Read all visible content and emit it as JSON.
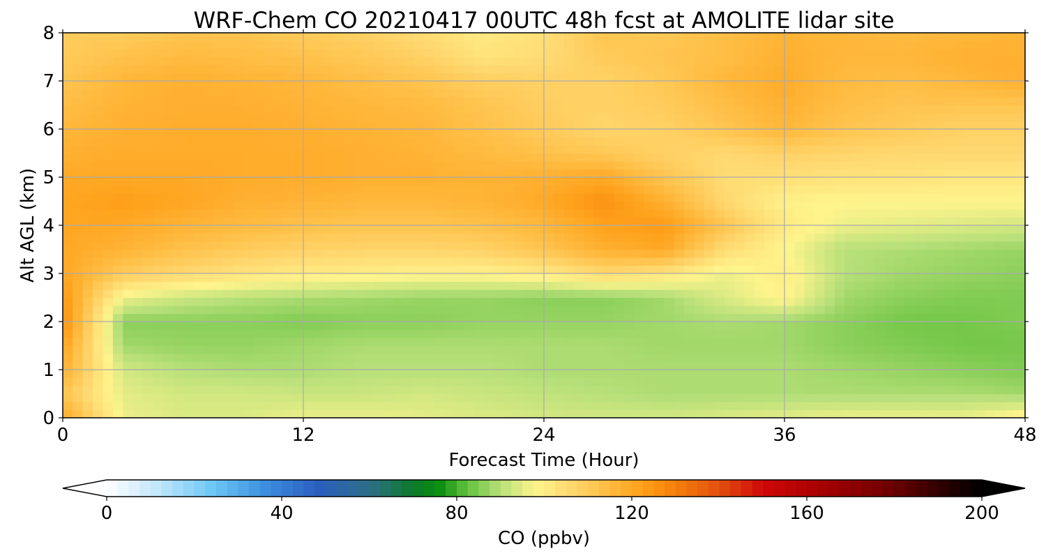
{
  "chart_data": {
    "type": "heatmap",
    "title": "WRF-Chem CO  20210417 00UTC 48h fcst at AMOLITE lidar site",
    "xlabel": "Forecast Time (Hour)",
    "ylabel": "Alt AGL (km)",
    "xlim": [
      0,
      48
    ],
    "ylim": [
      0,
      8
    ],
    "x_ticks": [
      0,
      12,
      24,
      36,
      48
    ],
    "y_ticks": [
      0,
      1,
      2,
      3,
      4,
      5,
      6,
      7,
      8
    ],
    "grid": true,
    "x": [
      0,
      3,
      6,
      9,
      12,
      15,
      18,
      21,
      24,
      27,
      30,
      33,
      36,
      39,
      42,
      45,
      48
    ],
    "y": [
      0,
      0.5,
      1,
      1.5,
      2,
      2.5,
      3,
      3.5,
      4,
      4.5,
      5,
      5.5,
      6,
      6.5,
      7,
      7.5,
      8
    ],
    "z": [
      [
        120,
        96,
        94,
        94,
        96,
        96,
        95,
        94,
        93,
        93,
        93,
        94,
        95,
        96,
        96,
        96,
        100
      ],
      [
        112,
        95,
        93,
        93,
        92,
        92,
        93,
        92,
        91,
        90,
        89,
        89,
        89,
        89,
        89,
        89,
        88
      ],
      [
        118,
        93,
        90,
        89,
        89,
        90,
        90,
        90,
        89,
        89,
        89,
        89,
        89,
        88,
        87,
        86,
        85
      ],
      [
        122,
        88,
        87,
        87,
        88,
        89,
        89,
        89,
        89,
        89,
        88,
        88,
        88,
        86,
        85,
        84,
        84
      ],
      [
        127,
        86,
        86,
        86,
        85,
        86,
        86,
        87,
        87,
        87,
        88,
        89,
        88,
        86,
        84,
        84,
        85
      ],
      [
        125,
        96,
        92,
        90,
        89,
        88,
        87,
        87,
        86,
        86,
        88,
        94,
        99,
        88,
        86,
        85,
        85
      ],
      [
        121,
        110,
        106,
        103,
        101,
        100,
        99,
        99,
        101,
        106,
        103,
        96,
        100,
        90,
        88,
        87,
        86
      ],
      [
        120,
        117,
        113,
        110,
        108,
        107,
        107,
        108,
        112,
        118,
        120,
        105,
        98,
        90,
        89,
        88,
        87
      ],
      [
        121,
        120,
        117,
        115,
        113,
        112,
        112,
        113,
        116,
        122,
        124,
        112,
        101,
        96,
        95,
        94,
        93
      ],
      [
        121,
        123,
        121,
        118,
        117,
        116,
        116,
        117,
        120,
        126,
        118,
        106,
        99,
        98,
        98,
        98,
        98
      ],
      [
        120,
        120,
        120,
        119,
        119,
        118,
        118,
        117,
        118,
        120,
        112,
        105,
        104,
        103,
        103,
        102,
        102
      ],
      [
        118,
        119,
        119,
        119,
        119,
        118,
        117,
        115,
        113,
        111,
        108,
        106,
        108,
        107,
        106,
        106,
        106
      ],
      [
        116,
        118,
        119,
        119,
        118,
        117,
        116,
        113,
        110,
        107,
        108,
        112,
        116,
        112,
        110,
        108,
        108
      ],
      [
        114,
        117,
        118,
        118,
        117,
        116,
        115,
        112,
        109,
        108,
        110,
        114,
        118,
        114,
        112,
        112,
        112
      ],
      [
        112,
        116,
        118,
        117,
        116,
        114,
        112,
        109,
        108,
        108,
        111,
        116,
        119,
        115,
        114,
        116,
        118
      ],
      [
        110,
        113,
        115,
        114,
        113,
        111,
        108,
        103,
        105,
        110,
        112,
        114,
        118,
        116,
        116,
        118,
        118
      ],
      [
        110,
        110,
        112,
        112,
        110,
        108,
        105,
        101,
        104,
        112,
        111,
        114,
        117,
        116,
        115,
        116,
        117
      ]
    ],
    "colorbar": {
      "label": "CO  (ppbv)",
      "range": [
        0,
        200
      ],
      "ticks": [
        0,
        40,
        80,
        120,
        160,
        200
      ],
      "extend": "both",
      "orientation": "horizontal",
      "stops": [
        {
          "v": 0,
          "c": "#ffffff"
        },
        {
          "v": 12,
          "c": "#bfe5fb"
        },
        {
          "v": 24,
          "c": "#6ec8f5"
        },
        {
          "v": 36,
          "c": "#3d8fe0"
        },
        {
          "v": 48,
          "c": "#2a5fc0"
        },
        {
          "v": 60,
          "c": "#2e6e88"
        },
        {
          "v": 70,
          "c": "#0c7a2a"
        },
        {
          "v": 76,
          "c": "#0a8f10"
        },
        {
          "v": 82,
          "c": "#5fbf3a"
        },
        {
          "v": 90,
          "c": "#b8e07a"
        },
        {
          "v": 98,
          "c": "#fff48c"
        },
        {
          "v": 106,
          "c": "#ffd870"
        },
        {
          "v": 114,
          "c": "#ffbe45"
        },
        {
          "v": 122,
          "c": "#ffa21c"
        },
        {
          "v": 130,
          "c": "#f57f0a"
        },
        {
          "v": 140,
          "c": "#e25010"
        },
        {
          "v": 150,
          "c": "#cf0808"
        },
        {
          "v": 165,
          "c": "#a00000"
        },
        {
          "v": 180,
          "c": "#6a0000"
        },
        {
          "v": 192,
          "c": "#260000"
        },
        {
          "v": 200,
          "c": "#000000"
        }
      ]
    }
  }
}
